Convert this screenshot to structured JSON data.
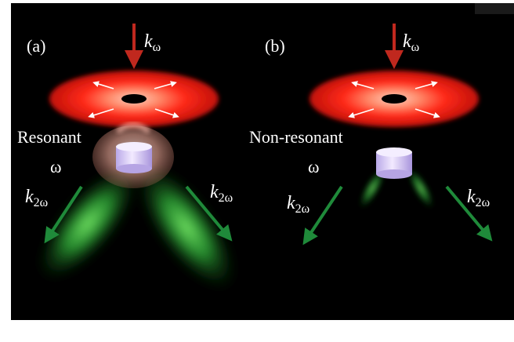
{
  "panels": [
    {
      "id": "a",
      "label": "(a)",
      "incident_wave": {
        "symbol": "k",
        "subscript": "ω"
      },
      "condition_line1": "Resonant",
      "condition_line2": "ω",
      "emission_left": {
        "symbol": "k",
        "subscript": "2ω"
      },
      "emission_right": {
        "symbol": "k",
        "subscript": "2ω"
      }
    },
    {
      "id": "b",
      "label": "(b)",
      "incident_wave": {
        "symbol": "k",
        "subscript": "ω"
      },
      "condition_line1": "Non-resonant",
      "condition_line2": "ω",
      "emission_left": {
        "symbol": "k",
        "subscript": "2ω"
      },
      "emission_right": {
        "symbol": "k",
        "subscript": "2ω"
      }
    }
  ],
  "colors": {
    "background": "#000000",
    "incident_arrow": "#c0281e",
    "pump_ring": "#ff2a1a",
    "emission_arrow": "#1f8a3a",
    "emission_lobe": "#3fcf4a",
    "disk": "#e6d8ff",
    "resonant_field": "#e8a89a"
  }
}
